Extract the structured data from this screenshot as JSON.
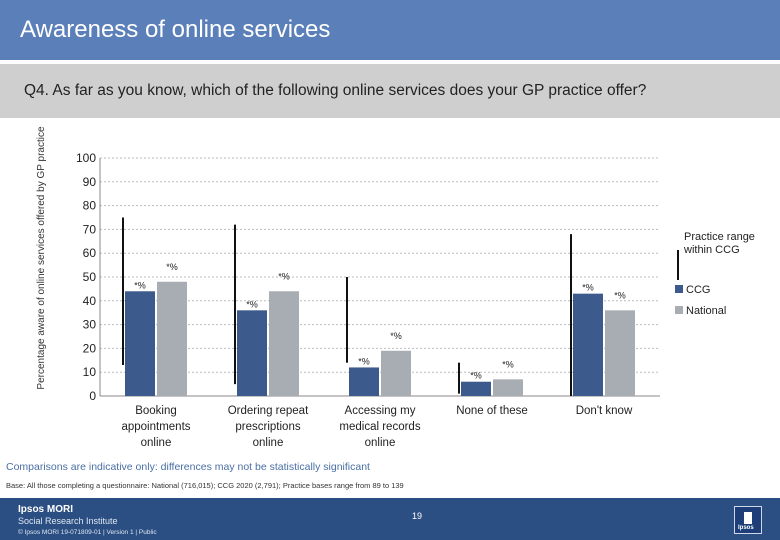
{
  "header": {
    "title": "Awareness of online services"
  },
  "question": {
    "text": "Q4. As far as you know, which of the following online services does your GP practice offer?"
  },
  "note": "Comparisons are indicative only: differences may not be statistically significant",
  "base": "Base: All those completing a questionnaire: National (716,015); CCG 2020 (2,791); Practice bases range from 89 to 139",
  "footer": {
    "logo_line1": "Ipsos MORI",
    "logo_line2": "Social Research Institute",
    "copyright": "© Ipsos MORI      19-071809-01 | Version 1 | Public",
    "page": "19",
    "icon_text": "Ipsos"
  },
  "colors": {
    "ccg": "#3c5a8c",
    "national": "#a8adb4",
    "range": "#111111",
    "grid": "#bbbbbb"
  },
  "chart_data": {
    "type": "bar",
    "ylabel": "Percentage aware of online services offered by GP practice",
    "ylim": [
      0,
      100
    ],
    "yticks": [
      0,
      10,
      20,
      30,
      40,
      50,
      60,
      70,
      80,
      90,
      100
    ],
    "categories": [
      "Booking appointments online",
      "Ordering repeat prescriptions online",
      "Accessing my medical records online",
      "None of these",
      "Don't know"
    ],
    "category_lines": [
      [
        "Booking",
        "appointments",
        "online"
      ],
      [
        "Ordering repeat",
        "prescriptions",
        "online"
      ],
      [
        "Accessing my",
        "medical records",
        "online"
      ],
      [
        "None of these"
      ],
      [
        "Don't know"
      ]
    ],
    "series": [
      {
        "name": "CCG",
        "values": [
          44,
          36,
          12,
          6,
          43
        ],
        "labels": [
          "*%",
          "*%",
          "*%",
          "*%",
          "*%"
        ]
      },
      {
        "name": "National",
        "values": [
          48,
          44,
          19,
          7,
          36
        ],
        "labels": [
          "*%",
          "*%",
          "*%",
          "*%",
          "*%"
        ]
      }
    ],
    "practice_range": [
      [
        13,
        75
      ],
      [
        5,
        72
      ],
      [
        14,
        50
      ],
      [
        1,
        14
      ],
      [
        0,
        68
      ]
    ],
    "legend": [
      "Practice range within CCG",
      "CCG",
      "National"
    ],
    "legend_position": "right",
    "grid": true
  }
}
